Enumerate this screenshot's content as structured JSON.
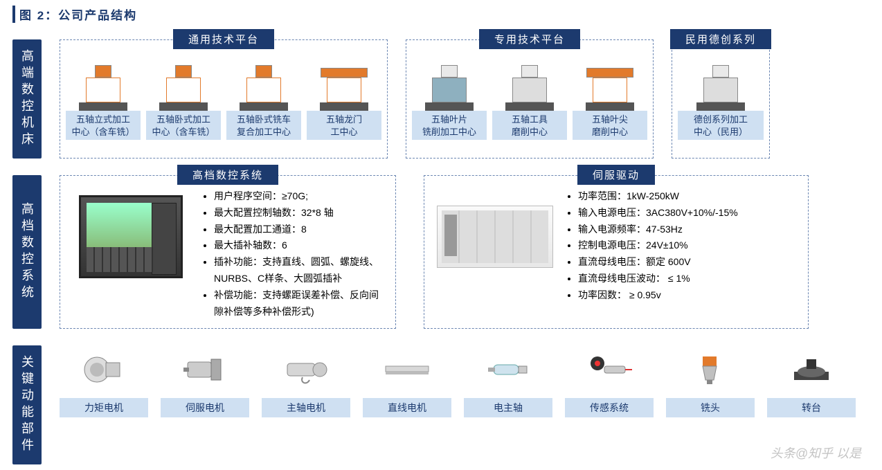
{
  "colors": {
    "brand": "#1c3a6e",
    "tile_bg": "#cfe0f2",
    "dash_border": "#6b86b2",
    "accent_orange": "#e27a2b",
    "text": "#000000",
    "page_bg": "#ffffff"
  },
  "figure_title": "图 2：公司产品结构",
  "row1": {
    "category": "高端数控机床",
    "groups": [
      {
        "title": "通用技术平台",
        "items": [
          {
            "label": "五轴立式加工\n中心（含车铣）",
            "style": "orange"
          },
          {
            "label": "五轴卧式加工\n中心（含车铣）",
            "style": "orange"
          },
          {
            "label": "五轴卧式铣车\n复合加工中心",
            "style": "orange"
          },
          {
            "label": "五轴龙门\n工中心",
            "style": "gantry"
          }
        ]
      },
      {
        "title": "专用技术平台",
        "items": [
          {
            "label": "五轴叶片\n铣削加工中心",
            "style": "cab"
          },
          {
            "label": "五轴工具\n磨削中心",
            "style": "plain"
          },
          {
            "label": "五轴叶尖\n磨削中心",
            "style": "gantry"
          }
        ]
      },
      {
        "title": "民用德创系列",
        "items": [
          {
            "label": "德创系列加工\n中心（民用）",
            "style": "plain"
          }
        ]
      }
    ]
  },
  "row2": {
    "category": "高档数控系统",
    "groups": [
      {
        "title": "高档数控系统",
        "specs": [
          "用户程序空间：≥70G;",
          "最大配置控制轴数：32*8 轴",
          "最大配置加工通道：8",
          "最大插补轴数：6",
          "插补功能：支持直线、圆弧、螺旋线、NURBS、C样条、大圆弧插补",
          "补偿功能：支持螺距误差补偿、反向间隙补偿等多种补偿形式)"
        ],
        "img": "cnc"
      },
      {
        "title": "伺服驱动",
        "specs": [
          "功率范围：1kW-250kW",
          "输入电源电压：3AC380V+10%/-15%",
          "输入电源频率：47-53Hz",
          "控制电源电压：24V±10%",
          "直流母线电压：额定 600V",
          "直流母线电压波动： ≤ 1%",
          "功率因数： ≥ 0.95v"
        ],
        "img": "servo"
      }
    ]
  },
  "row3": {
    "category": "关键动能部件",
    "items": [
      {
        "label": "力矩电机",
        "icon": "torque"
      },
      {
        "label": "伺服电机",
        "icon": "servo_motor"
      },
      {
        "label": "主轴电机",
        "icon": "spindle_motor"
      },
      {
        "label": "直线电机",
        "icon": "linear"
      },
      {
        "label": "电主轴",
        "icon": "espindle"
      },
      {
        "label": "传感系统",
        "icon": "sensor"
      },
      {
        "label": "铣头",
        "icon": "millhead"
      },
      {
        "label": "转台",
        "icon": "turntable"
      }
    ]
  },
  "watermark": "头条@知乎 以是"
}
